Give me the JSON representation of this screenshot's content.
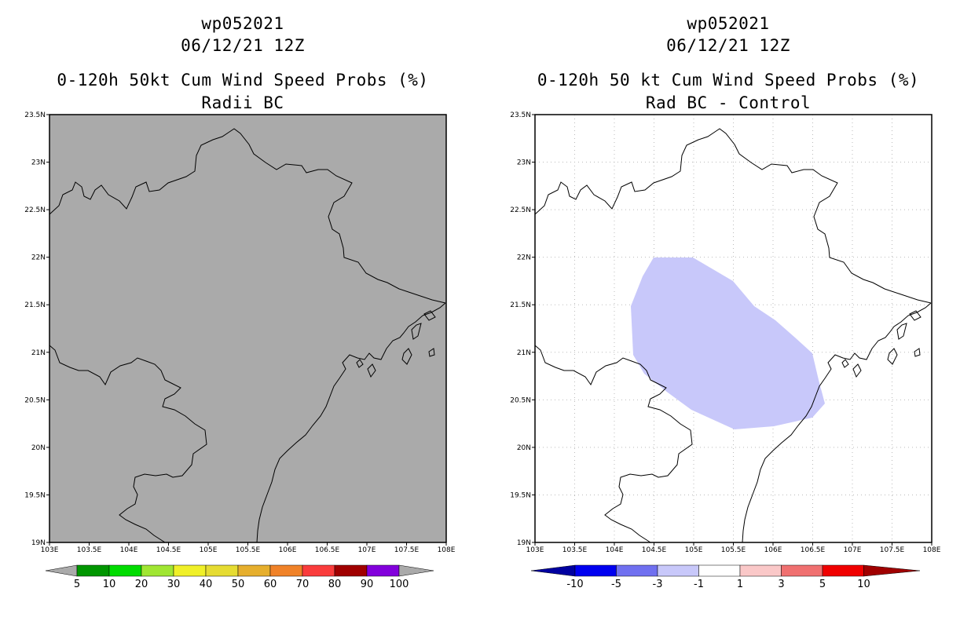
{
  "panels": [
    {
      "id": "left",
      "title_lines": [
        "wp052021",
        "06/12/21 12Z",
        "0-120h 50kt Cum Wind Speed Probs (%)",
        "Radii BC"
      ],
      "map_background": "#aaaaaa",
      "gridlines": false,
      "lat_labels": [
        "23.5N",
        "23N",
        "22.5N",
        "22N",
        "21.5N",
        "21N",
        "20.5N",
        "20N",
        "19.5N",
        "19N"
      ],
      "lon_labels": [
        "103E",
        "103.5E",
        "104E",
        "104.5E",
        "105E",
        "105.5E",
        "106E",
        "106.5E",
        "107E",
        "107.5E",
        "108E"
      ],
      "colorbar": {
        "colors": [
          "#aaaaaa",
          "#009600",
          "#00dc00",
          "#a0e632",
          "#f0f028",
          "#e6dc32",
          "#e6af2d",
          "#f08228",
          "#fa3c3c",
          "#a00000",
          "#8200dc",
          "#aaaaaa"
        ],
        "labels": [
          "5",
          "10",
          "20",
          "30",
          "40",
          "50",
          "60",
          "70",
          "80",
          "90",
          "100"
        ]
      }
    },
    {
      "id": "right",
      "title_lines": [
        "wp052021",
        "06/12/21 12Z",
        "0-120h 50 kt Cum Wind Speed Probs (%)",
        "Rad BC - Control"
      ],
      "map_background": "#ffffff",
      "gridlines": true,
      "shaded_region": {
        "color": "#c8c8fa",
        "value_class": "-3 to -1"
      },
      "lat_labels": [
        "23.5N",
        "23N",
        "22.5N",
        "22N",
        "21.5N",
        "21N",
        "20.5N",
        "20N",
        "19.5N",
        "19N"
      ],
      "lon_labels": [
        "103E",
        "103.5E",
        "104E",
        "104.5E",
        "105E",
        "105.5E",
        "106E",
        "106.5E",
        "107E",
        "107.5E",
        "108E"
      ],
      "colorbar": {
        "colors": [
          "#0000a0",
          "#0000f0",
          "#7070f0",
          "#c8c8fa",
          "#ffffff",
          "#fac8c8",
          "#f07070",
          "#f00000",
          "#a00000"
        ],
        "labels": [
          "-10",
          "-5",
          "-3",
          "-1",
          "1",
          "3",
          "5",
          "10"
        ]
      }
    }
  ]
}
